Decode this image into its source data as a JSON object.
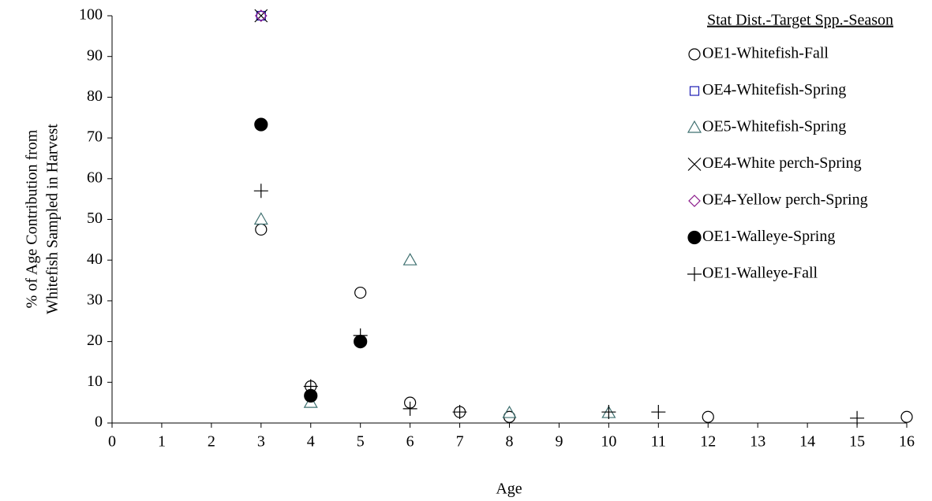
{
  "chart_data": {
    "type": "scatter",
    "xlabel": "Age",
    "ylabel": [
      "% of Age Contribution from",
      "Whitefish Sampled in Harvest"
    ],
    "legend_title": "Stat Dist.-Target Spp.-Season",
    "legend": "top-right",
    "xlim": [
      0,
      16
    ],
    "xticks": [
      0,
      1,
      2,
      3,
      4,
      5,
      6,
      7,
      8,
      9,
      10,
      11,
      12,
      13,
      14,
      15,
      16
    ],
    "ylim": [
      0,
      100
    ],
    "yticks": [
      0,
      10,
      20,
      30,
      40,
      50,
      60,
      70,
      80,
      90,
      100
    ],
    "grid": false,
    "series": [
      {
        "name": "OE1-Whitefish-Fall",
        "marker": "circle",
        "color": "#000000",
        "filled": false,
        "x": [
          3,
          4,
          5,
          6,
          7,
          8,
          12,
          16
        ],
        "values": [
          47.5,
          9,
          32,
          5,
          2.7,
          1.5,
          1.5,
          1.5
        ]
      },
      {
        "name": "OE4-Whitefish-Spring",
        "marker": "square",
        "color": "#1f1fb4",
        "filled": false,
        "x": [
          3
        ],
        "values": [
          100
        ]
      },
      {
        "name": "OE5-Whitefish-Spring",
        "marker": "triangle",
        "color": "#3f7070",
        "filled": false,
        "x": [
          3,
          4,
          6,
          8,
          10
        ],
        "values": [
          50,
          5,
          40,
          2.5,
          2.5
        ]
      },
      {
        "name": "OE4-White perch-Spring",
        "marker": "x",
        "color": "#000000",
        "filled": false,
        "x": [
          3
        ],
        "values": [
          100
        ]
      },
      {
        "name": "OE4-Yellow perch-Spring",
        "marker": "diamond",
        "color": "#8a1a8a",
        "filled": false,
        "x": [
          3
        ],
        "values": [
          100
        ]
      },
      {
        "name": "OE1-Walleye-Spring",
        "marker": "circle",
        "color": "#000000",
        "filled": true,
        "x": [
          3,
          4,
          5
        ],
        "values": [
          73.3,
          6.7,
          20
        ]
      },
      {
        "name": "OE1-Walleye-Fall",
        "marker": "plus",
        "color": "#000000",
        "filled": false,
        "x": [
          3,
          4,
          5,
          6,
          7,
          10,
          11,
          15
        ],
        "values": [
          57,
          9,
          21.5,
          3.5,
          2.7,
          2.7,
          2.7,
          1.2
        ]
      }
    ]
  }
}
